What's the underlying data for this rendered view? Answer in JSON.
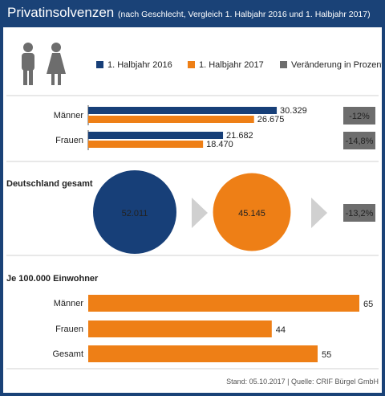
{
  "header": {
    "title": "Privatinsolvenzen",
    "subtitle": "(nach Geschlecht, Vergleich 1. Halbjahr 2016 und 1. Halbjahr 2017)"
  },
  "colors": {
    "navy": "#173f78",
    "orange": "#ee7f16",
    "gray": "#6d6d6d",
    "light_gray": "#d0d0d0",
    "header_bg": "#1a4277"
  },
  "icons": [
    "male-person-icon",
    "female-person-icon",
    "chevron-right-icon"
  ],
  "chart_data": [
    {
      "type": "bar",
      "orientation": "horizontal",
      "legend": [
        {
          "label": "1. Halbjahr 2016",
          "color": "#173f78"
        },
        {
          "label": "1. Halbjahr 2017",
          "color": "#ee7f16"
        },
        {
          "label": "Veränderung in Prozent",
          "color": "#6d6d6d"
        }
      ],
      "legend_position": "top",
      "categories": [
        "Männer",
        "Frauen"
      ],
      "series": [
        {
          "name": "1. Halbjahr 2016",
          "values": [
            30329,
            21682
          ],
          "value_labels": [
            "30.329",
            "21.682"
          ]
        },
        {
          "name": "1. Halbjahr 2017",
          "values": [
            26675,
            18470
          ],
          "value_labels": [
            "26.675",
            "18.470"
          ]
        }
      ],
      "change_labels": [
        "-12%",
        "-14,8%"
      ],
      "xlim": [
        0,
        40000
      ]
    },
    {
      "type": "bubble",
      "title": "Deutschland gesamt",
      "values": [
        52011,
        45145
      ],
      "value_labels": [
        "52.011",
        "45.145"
      ],
      "change_label": "-13,2%"
    },
    {
      "type": "bar",
      "orientation": "horizontal",
      "title": "Je 100.000 Einwohner",
      "categories": [
        "Männer",
        "Frauen",
        "Gesamt"
      ],
      "values": [
        65,
        44,
        55
      ],
      "value_labels": [
        "65",
        "44",
        "55"
      ],
      "xlim": [
        0,
        70
      ]
    }
  ],
  "footer": {
    "source": "Stand: 05.10.2017 | Quelle: CRIF Bürgel GmbH"
  }
}
